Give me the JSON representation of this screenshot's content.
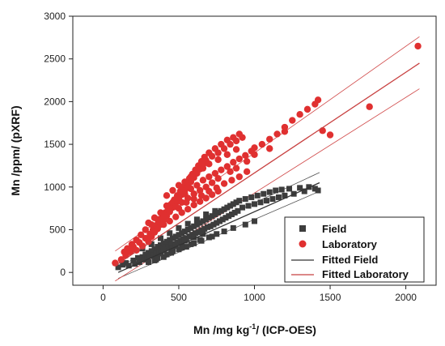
{
  "chart_data": {
    "type": "scatter",
    "xlabel_main": "Mn /mg kg",
    "xlabel_sup": "-1",
    "xlabel_tail": "/ (ICP-OES)",
    "ylabel": "Mn /ppm/ (pXRF)",
    "xlim": [
      -200,
      2200
    ],
    "ylim": [
      -150,
      3000
    ],
    "xticks": [
      0,
      500,
      1000,
      1500,
      2000
    ],
    "yticks": [
      0,
      500,
      1000,
      1500,
      2000,
      2500,
      3000
    ],
    "xtick_labels": [
      "0",
      "500",
      "1000",
      "1500",
      "2000"
    ],
    "ytick_labels": [
      "0",
      "500",
      "1000",
      "1500",
      "2000",
      "2500",
      "3000"
    ],
    "grid": false,
    "legend_position": "bottom-right",
    "colors": {
      "field": "#3d3d3d",
      "laboratory": "#e03030",
      "fitted_field": "#333333",
      "fitted_laboratory": "#c84040",
      "band_field": "#555555",
      "band_laboratory": "#d04848"
    },
    "legend": [
      "Field",
      "Laboratory",
      "Fitted Field",
      "Fitted Laboratory"
    ],
    "series": [
      {
        "name": "Field",
        "kind": "scatter",
        "marker": "square",
        "points": [
          [
            100,
            60
          ],
          [
            130,
            90
          ],
          [
            150,
            110
          ],
          [
            170,
            80
          ],
          [
            200,
            140
          ],
          [
            210,
            100
          ],
          [
            230,
            170
          ],
          [
            240,
            120
          ],
          [
            260,
            180
          ],
          [
            270,
            150
          ],
          [
            280,
            210
          ],
          [
            290,
            160
          ],
          [
            300,
            230
          ],
          [
            310,
            190
          ],
          [
            320,
            250
          ],
          [
            330,
            200
          ],
          [
            340,
            270
          ],
          [
            350,
            220
          ],
          [
            360,
            300
          ],
          [
            370,
            240
          ],
          [
            380,
            320
          ],
          [
            390,
            260
          ],
          [
            400,
            340
          ],
          [
            410,
            280
          ],
          [
            420,
            360
          ],
          [
            430,
            300
          ],
          [
            440,
            380
          ],
          [
            450,
            320
          ],
          [
            460,
            400
          ],
          [
            470,
            330
          ],
          [
            480,
            420
          ],
          [
            490,
            350
          ],
          [
            500,
            440
          ],
          [
            510,
            370
          ],
          [
            520,
            460
          ],
          [
            530,
            390
          ],
          [
            540,
            480
          ],
          [
            550,
            400
          ],
          [
            560,
            500
          ],
          [
            570,
            420
          ],
          [
            580,
            520
          ],
          [
            590,
            440
          ],
          [
            600,
            540
          ],
          [
            610,
            460
          ],
          [
            620,
            560
          ],
          [
            630,
            470
          ],
          [
            640,
            580
          ],
          [
            650,
            490
          ],
          [
            660,
            600
          ],
          [
            670,
            510
          ],
          [
            680,
            620
          ],
          [
            690,
            530
          ],
          [
            700,
            640
          ],
          [
            710,
            540
          ],
          [
            720,
            660
          ],
          [
            730,
            560
          ],
          [
            740,
            680
          ],
          [
            750,
            580
          ],
          [
            760,
            700
          ],
          [
            770,
            600
          ],
          [
            780,
            720
          ],
          [
            790,
            620
          ],
          [
            800,
            740
          ],
          [
            810,
            640
          ],
          [
            820,
            760
          ],
          [
            830,
            660
          ],
          [
            840,
            780
          ],
          [
            850,
            680
          ],
          [
            860,
            800
          ],
          [
            870,
            700
          ],
          [
            880,
            820
          ],
          [
            890,
            720
          ],
          [
            900,
            840
          ],
          [
            920,
            760
          ],
          [
            940,
            860
          ],
          [
            960,
            780
          ],
          [
            980,
            880
          ],
          [
            1000,
            800
          ],
          [
            1020,
            900
          ],
          [
            1040,
            820
          ],
          [
            1060,
            920
          ],
          [
            1080,
            840
          ],
          [
            1100,
            940
          ],
          [
            1120,
            860
          ],
          [
            1140,
            960
          ],
          [
            1160,
            880
          ],
          [
            1180,
            970
          ],
          [
            1200,
            900
          ],
          [
            1230,
            980
          ],
          [
            1260,
            920
          ],
          [
            1300,
            990
          ],
          [
            1330,
            950
          ],
          [
            1360,
            1000
          ],
          [
            1400,
            980
          ],
          [
            1420,
            960
          ],
          [
            350,
            150
          ],
          [
            400,
            180
          ],
          [
            450,
            230
          ],
          [
            500,
            270
          ],
          [
            550,
            300
          ],
          [
            600,
            340
          ],
          [
            650,
            370
          ],
          [
            700,
            410
          ],
          [
            750,
            450
          ],
          [
            800,
            480
          ],
          [
            320,
            330
          ],
          [
            380,
            400
          ],
          [
            440,
            460
          ],
          [
            500,
            520
          ],
          [
            560,
            570
          ],
          [
            620,
            620
          ],
          [
            680,
            680
          ],
          [
            740,
            720
          ],
          [
            260,
            280
          ],
          [
            300,
            120
          ],
          [
            340,
            140
          ],
          [
            360,
            170
          ],
          [
            420,
            210
          ],
          [
            460,
            250
          ],
          [
            520,
            290
          ],
          [
            580,
            330
          ],
          [
            640,
            380
          ],
          [
            720,
            420
          ],
          [
            860,
            520
          ],
          [
            940,
            560
          ],
          [
            1000,
            600
          ],
          [
            380,
            220
          ],
          [
            400,
            260
          ],
          [
            460,
            290
          ],
          [
            480,
            310
          ],
          [
            520,
            350
          ],
          [
            540,
            370
          ],
          [
            600,
            410
          ],
          [
            660,
            450
          ]
        ]
      },
      {
        "name": "Laboratory",
        "kind": "scatter",
        "marker": "circle",
        "points": [
          [
            80,
            110
          ],
          [
            120,
            150
          ],
          [
            150,
            200
          ],
          [
            180,
            240
          ],
          [
            200,
            300
          ],
          [
            220,
            260
          ],
          [
            240,
            350
          ],
          [
            260,
            310
          ],
          [
            280,
            400
          ],
          [
            300,
            360
          ],
          [
            310,
            450
          ],
          [
            320,
            420
          ],
          [
            330,
            500
          ],
          [
            340,
            470
          ],
          [
            350,
            550
          ],
          [
            360,
            510
          ],
          [
            370,
            600
          ],
          [
            380,
            560
          ],
          [
            390,
            650
          ],
          [
            400,
            610
          ],
          [
            410,
            700
          ],
          [
            420,
            660
          ],
          [
            430,
            750
          ],
          [
            440,
            710
          ],
          [
            450,
            800
          ],
          [
            460,
            760
          ],
          [
            470,
            850
          ],
          [
            480,
            810
          ],
          [
            490,
            900
          ],
          [
            500,
            860
          ],
          [
            510,
            950
          ],
          [
            520,
            910
          ],
          [
            530,
            1000
          ],
          [
            540,
            960
          ],
          [
            550,
            1050
          ],
          [
            560,
            1010
          ],
          [
            570,
            1100
          ],
          [
            580,
            1060
          ],
          [
            590,
            1150
          ],
          [
            600,
            1110
          ],
          [
            610,
            1200
          ],
          [
            620,
            1160
          ],
          [
            630,
            1250
          ],
          [
            640,
            1210
          ],
          [
            650,
            1300
          ],
          [
            660,
            1260
          ],
          [
            670,
            1350
          ],
          [
            680,
            1310
          ],
          [
            700,
            1400
          ],
          [
            720,
            1360
          ],
          [
            740,
            1450
          ],
          [
            760,
            1400
          ],
          [
            780,
            1500
          ],
          [
            800,
            1450
          ],
          [
            820,
            1550
          ],
          [
            840,
            1500
          ],
          [
            860,
            1580
          ],
          [
            880,
            1540
          ],
          [
            900,
            1620
          ],
          [
            920,
            1580
          ],
          [
            300,
            580
          ],
          [
            340,
            640
          ],
          [
            380,
            700
          ],
          [
            420,
            780
          ],
          [
            460,
            820
          ],
          [
            500,
            880
          ],
          [
            540,
            920
          ],
          [
            580,
            980
          ],
          [
            620,
            1020
          ],
          [
            660,
            1080
          ],
          [
            700,
            1120
          ],
          [
            740,
            1160
          ],
          [
            780,
            1200
          ],
          [
            820,
            1240
          ],
          [
            860,
            1290
          ],
          [
            900,
            1330
          ],
          [
            940,
            1370
          ],
          [
            980,
            1420
          ],
          [
            1000,
            1460
          ],
          [
            1050,
            1500
          ],
          [
            1100,
            1560
          ],
          [
            1150,
            1620
          ],
          [
            1200,
            1700
          ],
          [
            1250,
            1780
          ],
          [
            1300,
            1850
          ],
          [
            1350,
            1910
          ],
          [
            1400,
            1970
          ],
          [
            1450,
            1660
          ],
          [
            1500,
            1610
          ],
          [
            1420,
            2020
          ],
          [
            1760,
            1940
          ],
          [
            2080,
            2650
          ],
          [
            1200,
            1650
          ],
          [
            1100,
            1450
          ],
          [
            1000,
            1380
          ],
          [
            950,
            1300
          ],
          [
            880,
            1220
          ],
          [
            840,
            1180
          ],
          [
            760,
            1100
          ],
          [
            720,
            1050
          ],
          [
            680,
            1000
          ],
          [
            640,
            960
          ],
          [
            600,
            920
          ],
          [
            560,
            870
          ],
          [
            520,
            820
          ],
          [
            480,
            770
          ],
          [
            440,
            720
          ],
          [
            400,
            680
          ],
          [
            360,
            620
          ],
          [
            320,
            560
          ],
          [
            280,
            500
          ],
          [
            250,
            440
          ],
          [
            220,
            380
          ],
          [
            190,
            330
          ],
          [
            160,
            280
          ],
          [
            140,
            240
          ],
          [
            500,
            750
          ],
          [
            550,
            820
          ],
          [
            600,
            860
          ],
          [
            650,
            900
          ],
          [
            700,
            950
          ],
          [
            750,
            990
          ],
          [
            800,
            1040
          ],
          [
            850,
            1080
          ],
          [
            900,
            1120
          ],
          [
            950,
            1180
          ],
          [
            420,
            900
          ],
          [
            460,
            960
          ],
          [
            500,
            1020
          ],
          [
            540,
            1060
          ],
          [
            580,
            1120
          ],
          [
            620,
            1170
          ],
          [
            660,
            1220
          ],
          [
            700,
            1270
          ],
          [
            760,
            1320
          ],
          [
            820,
            1380
          ],
          [
            880,
            1440
          ],
          [
            400,
            560
          ],
          [
            440,
            600
          ],
          [
            480,
            650
          ],
          [
            520,
            700
          ],
          [
            560,
            740
          ],
          [
            600,
            790
          ],
          [
            640,
            830
          ],
          [
            680,
            870
          ],
          [
            720,
            910
          ],
          [
            760,
            950
          ]
        ]
      },
      {
        "name": "Fitted Field",
        "kind": "line",
        "line": [
          [
            100,
            0
          ],
          [
            1430,
            1050
          ]
        ],
        "band": [
          [
            [
              100,
              -70
            ],
            [
              1430,
              950
            ]
          ],
          [
            [
              100,
              70
            ],
            [
              1430,
              1170
            ]
          ]
        ]
      },
      {
        "name": "Fitted Laboratory",
        "kind": "line",
        "line": [
          [
            80,
            80
          ],
          [
            2090,
            2450
          ]
        ],
        "band": [
          [
            [
              80,
              -100
            ],
            [
              2090,
              2150
            ]
          ],
          [
            [
              80,
              250
            ],
            [
              2090,
              2760
            ]
          ]
        ]
      }
    ]
  }
}
